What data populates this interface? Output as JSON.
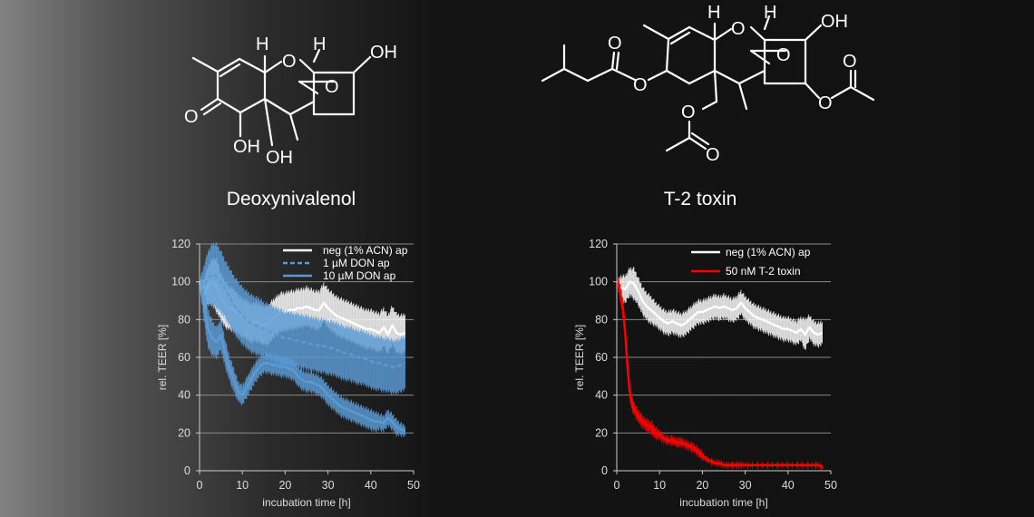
{
  "molecules": {
    "left_name": "Deoxynivalenol",
    "right_name": "T-2 toxin"
  },
  "chart_data": [
    {
      "type": "line",
      "xlabel": "incubation time [h]",
      "ylabel": "rel. TEER [%]",
      "xlim": [
        0,
        50
      ],
      "ylim": [
        0,
        120
      ],
      "xticks": [
        0,
        10,
        20,
        30,
        40,
        50
      ],
      "yticks": [
        0,
        20,
        40,
        60,
        80,
        100,
        120
      ],
      "grid": "horizontal",
      "legend": "top-right",
      "series": [
        {
          "name": "neg (1% ACN) ap",
          "color": "#ffffff",
          "style": "solid",
          "x": [
            0,
            1,
            2,
            3,
            4,
            5,
            6,
            7,
            8,
            9,
            10,
            11,
            12,
            13,
            14,
            15,
            16,
            17,
            18,
            19,
            20,
            21,
            22,
            23,
            24,
            25,
            26,
            27,
            28,
            29,
            30,
            31,
            32,
            33,
            34,
            35,
            36,
            37,
            38,
            39,
            40,
            41,
            42,
            43,
            44,
            45,
            46,
            47,
            48
          ],
          "y": [
            100,
            93,
            98,
            100,
            98,
            92,
            88,
            86,
            85,
            83,
            81,
            80,
            78,
            79,
            78,
            77,
            77,
            80,
            82,
            84,
            84,
            85,
            85,
            86,
            86,
            87,
            86,
            85,
            85,
            89,
            86,
            84,
            82,
            81,
            80,
            79,
            78,
            77,
            76,
            75,
            75,
            74,
            73,
            76,
            72,
            77,
            73,
            72,
            73
          ],
          "error": [
            0,
            8,
            10,
            12,
            14,
            12,
            12,
            11,
            11,
            10,
            10,
            10,
            10,
            10,
            10,
            10,
            10,
            10,
            10,
            10,
            10,
            10,
            10,
            10,
            10,
            10,
            10,
            10,
            10,
            10,
            10,
            10,
            10,
            10,
            10,
            10,
            10,
            10,
            10,
            10,
            10,
            10,
            10,
            10,
            10,
            10,
            10,
            10,
            10
          ]
        },
        {
          "name": "1 µM DON ap",
          "color": "#5b9bd5",
          "style": "dashed",
          "x": [
            0,
            1,
            2,
            3,
            4,
            5,
            6,
            7,
            8,
            9,
            10,
            11,
            12,
            13,
            14,
            15,
            16,
            17,
            18,
            19,
            20,
            21,
            22,
            23,
            24,
            25,
            26,
            27,
            28,
            29,
            30,
            31,
            32,
            33,
            34,
            35,
            36,
            37,
            38,
            39,
            40,
            41,
            42,
            43,
            44,
            45,
            46,
            47,
            48
          ],
          "y": [
            100,
            98,
            102,
            104,
            103,
            100,
            96,
            92,
            88,
            85,
            82,
            80,
            78,
            77,
            76,
            75,
            74,
            73,
            72,
            71,
            70,
            70,
            69,
            69,
            68,
            68,
            67,
            67,
            66,
            66,
            65,
            65,
            64,
            63,
            62,
            62,
            61,
            60,
            60,
            59,
            58,
            57,
            57,
            56,
            56,
            55,
            55,
            56,
            57
          ],
          "error": [
            0,
            10,
            14,
            16,
            17,
            16,
            15,
            15,
            15,
            15,
            15,
            15,
            15,
            15,
            15,
            14,
            14,
            14,
            14,
            14,
            14,
            14,
            14,
            14,
            14,
            14,
            14,
            14,
            14,
            14,
            14,
            14,
            14,
            14,
            14,
            14,
            14,
            14,
            14,
            14,
            14,
            14,
            14,
            14,
            14,
            14,
            14,
            14,
            14
          ]
        },
        {
          "name": "10 µM DON ap",
          "color": "#5b9bd5",
          "style": "solid",
          "x": [
            0,
            1,
            2,
            3,
            4,
            5,
            6,
            7,
            8,
            9,
            10,
            11,
            12,
            13,
            14,
            15,
            16,
            17,
            18,
            19,
            20,
            21,
            22,
            23,
            24,
            25,
            26,
            27,
            28,
            29,
            30,
            31,
            32,
            33,
            34,
            35,
            36,
            37,
            38,
            39,
            40,
            41,
            42,
            43,
            44,
            45,
            46,
            47,
            48
          ],
          "y": [
            100,
            88,
            75,
            70,
            68,
            72,
            62,
            54,
            48,
            42,
            40,
            44,
            48,
            52,
            55,
            57,
            57,
            56,
            56,
            55,
            55,
            54,
            53,
            50,
            48,
            47,
            47,
            46,
            45,
            43,
            40,
            38,
            36,
            34,
            33,
            32,
            31,
            30,
            29,
            28,
            27,
            26,
            26,
            25,
            28,
            26,
            23,
            22,
            21
          ],
          "error": [
            0,
            8,
            10,
            9,
            8,
            8,
            7,
            6,
            6,
            5,
            5,
            5,
            5,
            5,
            5,
            5,
            5,
            5,
            5,
            5,
            5,
            5,
            5,
            5,
            5,
            5,
            5,
            5,
            5,
            5,
            5,
            5,
            5,
            5,
            5,
            5,
            5,
            5,
            5,
            5,
            5,
            5,
            4,
            4,
            4,
            4,
            4,
            3,
            3
          ]
        }
      ]
    },
    {
      "type": "line",
      "xlabel": "incubation time [h]",
      "ylabel": "rel. TEER [%]",
      "xlim": [
        0,
        50
      ],
      "ylim": [
        0,
        120
      ],
      "xticks": [
        0,
        10,
        20,
        30,
        40,
        50
      ],
      "yticks": [
        0,
        20,
        40,
        60,
        80,
        100,
        120
      ],
      "grid": "horizontal",
      "legend": "top-right",
      "series": [
        {
          "name": "neg (1% ACN) ap",
          "color": "#ffffff",
          "style": "solid",
          "x": [
            0,
            1,
            2,
            3,
            4,
            5,
            6,
            7,
            8,
            9,
            10,
            11,
            12,
            13,
            14,
            15,
            16,
            17,
            18,
            19,
            20,
            21,
            22,
            23,
            24,
            25,
            26,
            27,
            28,
            29,
            30,
            31,
            32,
            33,
            34,
            35,
            36,
            37,
            38,
            39,
            40,
            41,
            42,
            43,
            44,
            45,
            46,
            47,
            48
          ],
          "y": [
            100,
            97,
            96,
            100,
            99,
            95,
            90,
            87,
            85,
            83,
            81,
            79,
            78,
            79,
            78,
            77,
            78,
            80,
            82,
            84,
            84,
            85,
            86,
            87,
            86,
            87,
            86,
            85,
            86,
            89,
            86,
            84,
            82,
            81,
            80,
            79,
            78,
            77,
            76,
            75,
            75,
            74,
            73,
            75,
            72,
            76,
            73,
            72,
            73
          ],
          "error": [
            0,
            6,
            7,
            7,
            8,
            7,
            7,
            7,
            7,
            6,
            6,
            6,
            6,
            6,
            6,
            6,
            6,
            6,
            6,
            6,
            6,
            6,
            6,
            6,
            6,
            6,
            6,
            6,
            6,
            6,
            6,
            6,
            6,
            6,
            6,
            6,
            6,
            6,
            6,
            6,
            6,
            6,
            6,
            6,
            8,
            6,
            6,
            6,
            6
          ]
        },
        {
          "name": "50 nM T-2 toxin",
          "color": "#ff0000",
          "style": "solid",
          "x": [
            0,
            0.5,
            1,
            1.5,
            2,
            2.5,
            3,
            3.5,
            4,
            5,
            6,
            7,
            8,
            9,
            10,
            11,
            12,
            13,
            14,
            15,
            16,
            17,
            18,
            19,
            20,
            21,
            22,
            23,
            24,
            25,
            26,
            27,
            28,
            29,
            30,
            32,
            34,
            36,
            38,
            40,
            42,
            44,
            46,
            47,
            48
          ],
          "y": [
            100,
            98,
            92,
            85,
            72,
            55,
            42,
            36,
            33,
            29,
            26,
            24,
            23,
            20,
            19,
            17,
            16,
            16,
            15,
            15,
            14,
            13,
            12,
            10,
            8,
            6,
            5,
            4,
            4,
            3,
            3,
            3,
            3,
            3,
            3,
            3,
            3,
            3,
            3,
            3,
            3,
            3,
            3,
            3,
            2
          ],
          "error": [
            0,
            3,
            4,
            4,
            4,
            4,
            3,
            3,
            3,
            3,
            3,
            3,
            3,
            3,
            2,
            2,
            2,
            2,
            2,
            2,
            2,
            2,
            2,
            2,
            2,
            1,
            1,
            1,
            1,
            1,
            1,
            1,
            1,
            1,
            1,
            1,
            1,
            1,
            1,
            1,
            1,
            1,
            1,
            1,
            1
          ]
        }
      ]
    }
  ]
}
